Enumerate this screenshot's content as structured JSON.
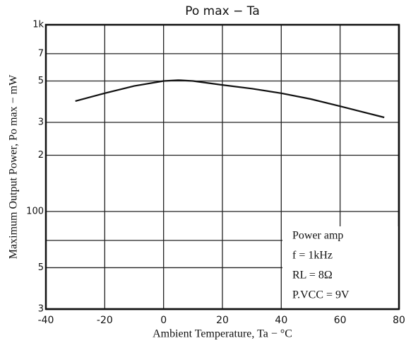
{
  "chart_data": {
    "type": "line",
    "title": "Po max  −  Ta",
    "x_label": "Ambient Temperature, Ta  −  °C",
    "y_label": "Maximum Output Power, Po max  −  mW",
    "x": [
      -30,
      -20,
      -10,
      0,
      5,
      10,
      20,
      30,
      40,
      50,
      60,
      75
    ],
    "series": [
      {
        "name": "Power amp",
        "color": "#111111",
        "values": [
          390,
          430,
          470,
          500,
          505,
          500,
          476,
          455,
          430,
          400,
          366,
          319
        ]
      }
    ],
    "annotations": [
      "Power amp",
      "f = 1kHz",
      "RL = 8Ω",
      "P.VCC = 9V"
    ],
    "xlim": [
      -40,
      80
    ],
    "xticks": [
      -40,
      -20,
      0,
      20,
      40,
      60,
      80
    ],
    "ylim": [
      30,
      1000
    ],
    "log_y": true,
    "yticks": [
      {
        "value": 1000,
        "label": "1k"
      },
      {
        "value": 700,
        "label": "7"
      },
      {
        "value": 500,
        "label": "5"
      },
      {
        "value": 300,
        "label": "3"
      },
      {
        "value": 200,
        "label": "2"
      },
      100,
      {
        "value": 50,
        "label": "5"
      },
      {
        "value": 30,
        "label": "3"
      }
    ],
    "yminor": [
      70
    ],
    "grid": true
  }
}
